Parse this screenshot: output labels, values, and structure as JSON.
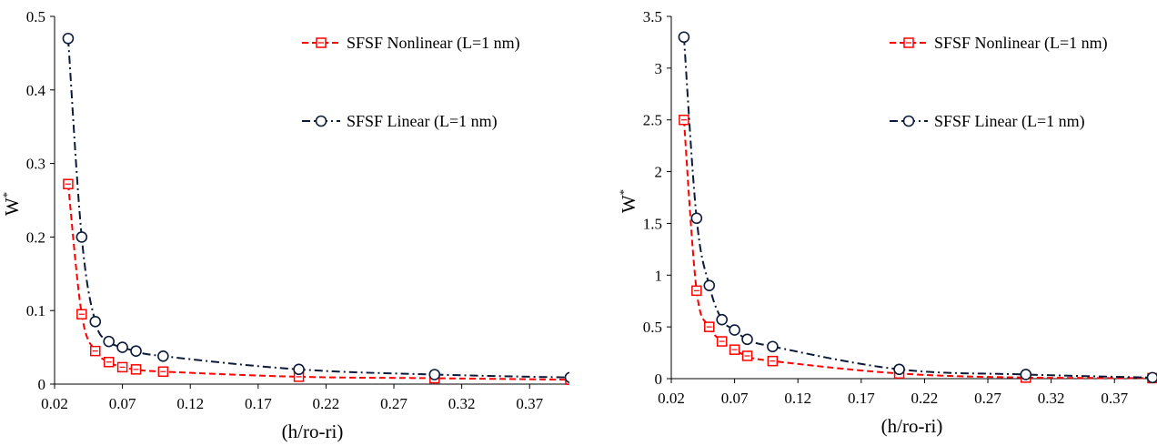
{
  "chart_data": [
    {
      "type": "line",
      "xlabel": "(h/ro-ri)",
      "ylabel": "W",
      "ylabel_sup": "*",
      "xlim": [
        0.02,
        0.4
      ],
      "ylim": [
        0,
        0.5
      ],
      "xticks": [
        "0.02",
        "0.07",
        "0.12",
        "0.17",
        "0.22",
        "0.27",
        "0.32",
        "0.37"
      ],
      "xtick_values": [
        0.02,
        0.07,
        0.12,
        0.17,
        0.22,
        0.27,
        0.32,
        0.37
      ],
      "yticks": [
        "0",
        "0.1",
        "0.2",
        "0.3",
        "0.4",
        "0.5"
      ],
      "ytick_values": [
        0,
        0.1,
        0.2,
        0.3,
        0.4,
        0.5
      ],
      "legend_position": "top-right",
      "x": [
        0.03,
        0.04,
        0.05,
        0.06,
        0.07,
        0.08,
        0.1,
        0.2,
        0.3,
        0.4
      ],
      "series": [
        {
          "name": "SFSF Nonlinear (L=1 nm)",
          "color": "#ff0000",
          "marker": "square",
          "dash": "dashed",
          "values": [
            0.272,
            0.095,
            0.045,
            0.03,
            0.023,
            0.02,
            0.017,
            0.01,
            0.008,
            0.006
          ]
        },
        {
          "name": "SFSF Linear (L=1 nm)",
          "color": "#0d1b3a",
          "marker": "circle",
          "dash": "dashdot",
          "values": [
            0.47,
            0.2,
            0.085,
            0.058,
            0.05,
            0.045,
            0.038,
            0.02,
            0.013,
            0.009
          ]
        }
      ]
    },
    {
      "type": "line",
      "xlabel": "(h/ro-ri)",
      "ylabel": "W",
      "ylabel_sup": "*",
      "xlim": [
        0.02,
        0.4
      ],
      "ylim": [
        0,
        3.5
      ],
      "xticks": [
        "0.02",
        "0.07",
        "0.12",
        "0.17",
        "0.22",
        "0.27",
        "0.32",
        "0.37"
      ],
      "xtick_values": [
        0.02,
        0.07,
        0.12,
        0.17,
        0.22,
        0.27,
        0.32,
        0.37
      ],
      "yticks": [
        "0",
        "0.5",
        "1",
        "1.5",
        "2",
        "2.5",
        "3",
        "3.5"
      ],
      "ytick_values": [
        0,
        0.5,
        1,
        1.5,
        2,
        2.5,
        3,
        3.5
      ],
      "legend_position": "top-right",
      "x": [
        0.03,
        0.04,
        0.05,
        0.06,
        0.07,
        0.08,
        0.1,
        0.2,
        0.3,
        0.4
      ],
      "series": [
        {
          "name": "SFSF Nonlinear (L=1 nm)",
          "color": "#ff0000",
          "marker": "square",
          "dash": "dashed",
          "values": [
            2.5,
            0.85,
            0.5,
            0.36,
            0.28,
            0.22,
            0.17,
            0.05,
            0.01,
            0.005
          ]
        },
        {
          "name": "SFSF Linear (L=1 nm)",
          "color": "#0d1b3a",
          "marker": "circle",
          "dash": "dashdot",
          "values": [
            3.3,
            1.55,
            0.9,
            0.57,
            0.47,
            0.38,
            0.31,
            0.09,
            0.04,
            0.01
          ]
        }
      ]
    }
  ]
}
